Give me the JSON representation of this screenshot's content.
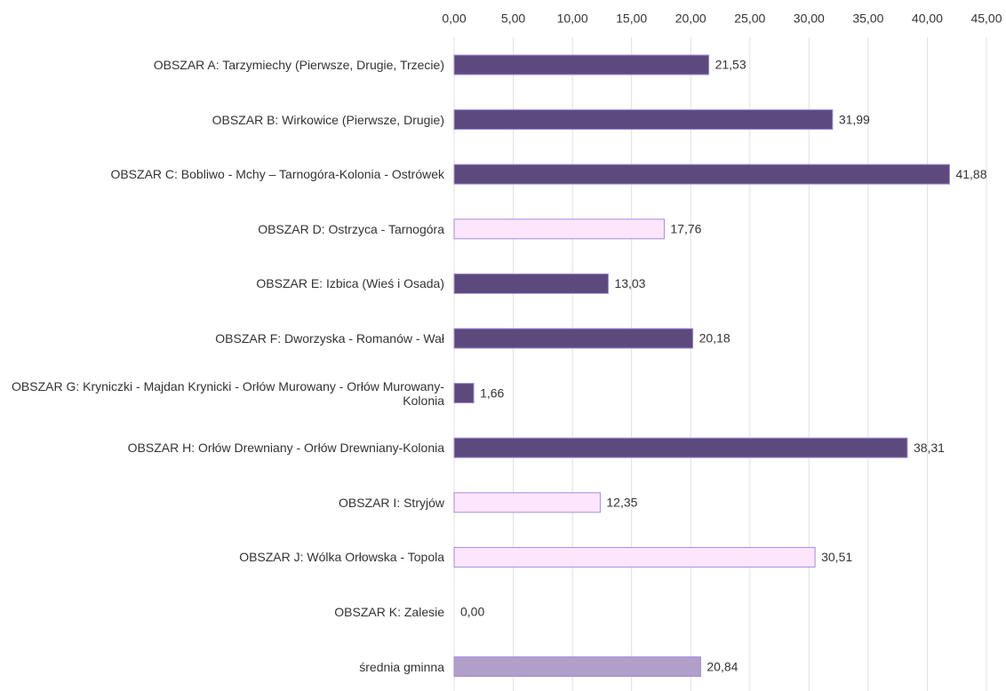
{
  "chart_data": {
    "type": "bar",
    "orientation": "horizontal",
    "categories": [
      "OBSZAR A: Tarzymiechy (Pierwsze, Drugie, Trzecie)",
      "OBSZAR B: Wirkowice (Pierwsze, Drugie)",
      "OBSZAR C: Bobliwo - Mchy – Tarnogóra-Kolonia - Ostrówek",
      "OBSZAR D: Ostrzyca - Tarnogóra",
      "OBSZAR E: Izbica (Wieś i Osada)",
      "OBSZAR F: Dworzyska - Romanów - Wał",
      "OBSZAR G: Kryniczki - Majdan Krynicki - Orłów Murowany - Orłów Murowany-Kolonia",
      "OBSZAR H: Orłów Drewniany - Orłów Drewniany-Kolonia",
      "OBSZAR I: Stryjów",
      "OBSZAR J: Wólka Orłowska - Topola",
      "OBSZAR K: Zalesie",
      "średnia gminna"
    ],
    "values": [
      21.53,
      31.99,
      41.88,
      17.76,
      13.03,
      20.18,
      1.66,
      38.31,
      12.35,
      30.51,
      0,
      20.84
    ],
    "value_labels": [
      "21,53",
      "31,99",
      "41,88",
      "17,76",
      "13,03",
      "20,18",
      "1,66",
      "38,31",
      "12,35",
      "30,51",
      "0,00",
      "20,84"
    ],
    "colors": [
      "#5c4a7d",
      "#5c4a7d",
      "#5c4a7d",
      "#fde6fc",
      "#5c4a7d",
      "#5c4a7d",
      "#5c4a7d",
      "#5c4a7d",
      "#fde6fc",
      "#fde6fc",
      "#5c4a7d",
      "#b19fc9"
    ],
    "xlim": [
      0,
      45
    ],
    "xticks": [
      {
        "value": 0,
        "label": "0,00"
      },
      {
        "value": 5,
        "label": "5,00"
      },
      {
        "value": 10,
        "label": "10,00"
      },
      {
        "value": 15,
        "label": "15,00"
      },
      {
        "value": 20,
        "label": "20,00"
      },
      {
        "value": 25,
        "label": "25,00"
      },
      {
        "value": 30,
        "label": "30,00"
      },
      {
        "value": 35,
        "label": "35,00"
      },
      {
        "value": 40,
        "label": "40,00"
      },
      {
        "value": 45,
        "label": "45,00"
      }
    ],
    "grid": true
  }
}
